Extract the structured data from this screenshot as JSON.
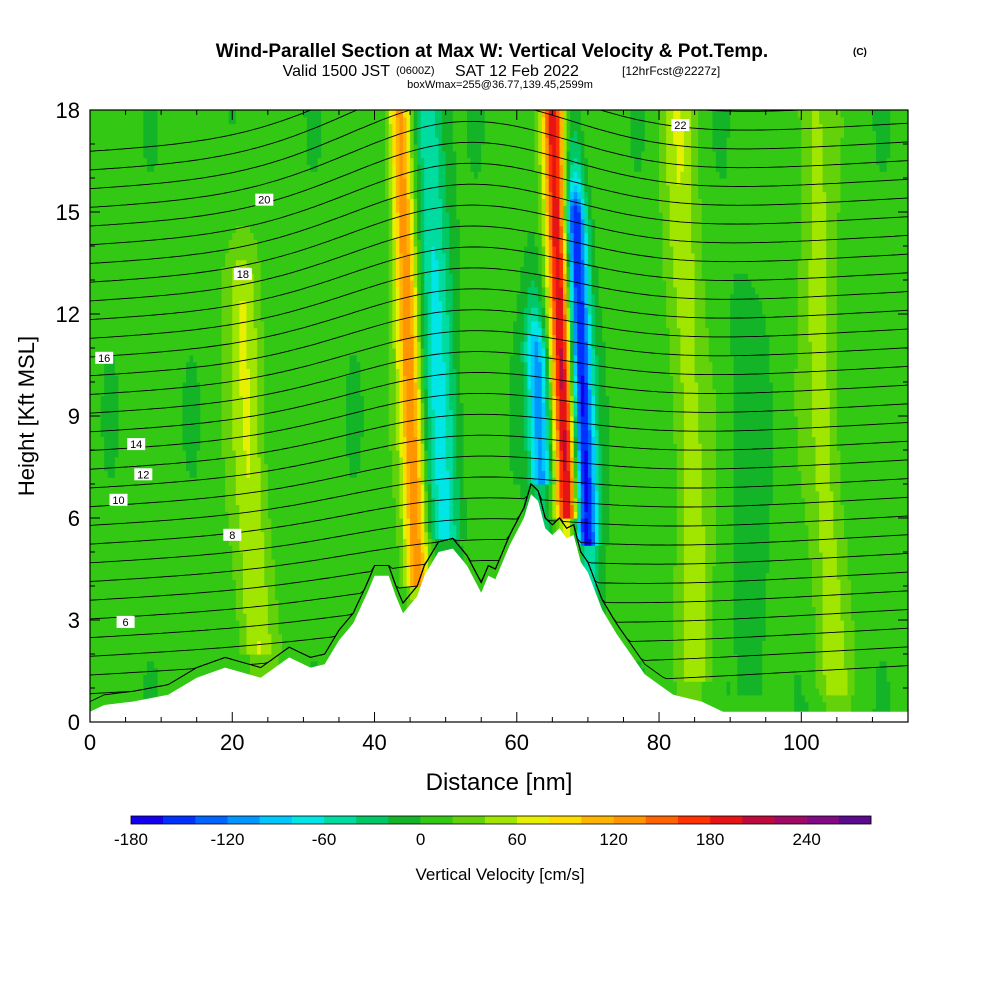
{
  "title": {
    "main": "Wind-Parallel Section at Max W: Vertical Velocity & Pot.Temp.",
    "copyright": "(C)",
    "valid_prefix": "Valid 1500 JST",
    "valid_utc": "(0600Z)",
    "valid_date": "SAT 12 Feb 2022",
    "forecast": "[12hrFcst@2227z]",
    "box": "boxWmax=255@36.77,139.45,2599m"
  },
  "chart_data": {
    "type": "heatmap",
    "xlabel": "Distance [nm]",
    "ylabel": "Height [Kft MSL]",
    "xlim": [
      0,
      115
    ],
    "ylim": [
      0,
      18
    ],
    "x_ticks": [
      "0",
      "20",
      "40",
      "60",
      "80",
      "100"
    ],
    "y_ticks": [
      "0",
      "3",
      "6",
      "9",
      "12",
      "15",
      "18"
    ],
    "colorbar": {
      "label": "Vertical Velocity [cm/s]",
      "min": -180,
      "max": 270,
      "step": 20,
      "tick_values": [
        -180,
        -120,
        -60,
        0,
        60,
        120,
        180,
        240
      ],
      "tick_labels": [
        "-180",
        "-120",
        "-60",
        "0",
        "60",
        "120",
        "180",
        "240"
      ],
      "colors": [
        "#1400f0",
        "#0032ff",
        "#0064ff",
        "#0096ff",
        "#00c8ff",
        "#00e6e6",
        "#00dca0",
        "#00c864",
        "#14b428",
        "#32c814",
        "#64d20a",
        "#a0e600",
        "#e6f000",
        "#ffdc00",
        "#ffb400",
        "#ff9600",
        "#ff6400",
        "#ff3200",
        "#e61414",
        "#be0a3c",
        "#a00a64",
        "#820a82",
        "#5a0a8c"
      ]
    },
    "updrafts": [
      {
        "x": 45,
        "z_top": 18,
        "w": 130
      },
      {
        "x": 66.5,
        "z_top": 18,
        "w": 200
      },
      {
        "x": 22,
        "z_top": 13,
        "w": 50
      },
      {
        "x": 84,
        "z_top": 18,
        "w": 45
      },
      {
        "x": 103,
        "z_top": 18,
        "w": 40
      }
    ],
    "downdrafts": [
      {
        "x": 49,
        "z_top": 18,
        "w": -70
      },
      {
        "x": 63,
        "z_top": 11,
        "w": -120
      },
      {
        "x": 69,
        "z_top": 15,
        "w": -180
      },
      {
        "x": 92,
        "z_top": 12,
        "w": -20
      }
    ],
    "terrain_kft": [
      [
        0,
        0.3
      ],
      [
        2,
        0.5
      ],
      [
        6,
        0.6
      ],
      [
        11,
        0.8
      ],
      [
        15,
        1.3
      ],
      [
        19,
        1.6
      ],
      [
        24,
        1.3
      ],
      [
        28,
        1.9
      ],
      [
        31,
        1.6
      ],
      [
        33,
        1.7
      ],
      [
        35,
        2.4
      ],
      [
        37,
        2.9
      ],
      [
        39,
        3.8
      ],
      [
        40,
        4.3
      ],
      [
        42,
        4.3
      ],
      [
        43,
        3.7
      ],
      [
        44,
        3.2
      ],
      [
        46,
        3.7
      ],
      [
        47,
        4.3
      ],
      [
        49,
        5.0
      ],
      [
        51,
        5.1
      ],
      [
        53,
        4.6
      ],
      [
        55,
        3.8
      ],
      [
        56,
        4.3
      ],
      [
        57,
        4.2
      ],
      [
        59,
        5.2
      ],
      [
        61,
        6.0
      ],
      [
        62,
        6.7
      ],
      [
        63,
        6.5
      ],
      [
        64,
        5.7
      ],
      [
        65,
        5.5
      ],
      [
        66,
        5.7
      ],
      [
        67,
        5.4
      ],
      [
        68,
        5.5
      ],
      [
        69,
        4.7
      ],
      [
        70,
        4.4
      ],
      [
        72,
        3.3
      ],
      [
        74,
        2.6
      ],
      [
        76,
        2.0
      ],
      [
        78,
        1.4
      ],
      [
        80,
        1.1
      ],
      [
        82,
        0.8
      ],
      [
        86,
        0.6
      ],
      [
        89,
        0.3
      ],
      [
        115,
        0.3
      ]
    ],
    "theta_contours": [
      {
        "label": "6",
        "base_kft": 3.6,
        "label_at": 5
      },
      {
        "label": "8",
        "base_kft": 5.9,
        "label_at": 20
      },
      {
        "label": "10",
        "base_kft": 7.2,
        "label_at": 4
      },
      {
        "label": "12",
        "base_kft": 7.9,
        "label_at": 7.5
      },
      {
        "label": "14",
        "base_kft": 8.8,
        "label_at": 6.5
      },
      {
        "label": "16",
        "base_kft": 11.4,
        "label_at": 2
      },
      {
        "label": "18",
        "base_kft": 13.4,
        "label_at": 21.5
      },
      {
        "label": "20",
        "base_kft": 15.4,
        "label_at": 24.5
      },
      {
        "label": "22",
        "base_kft": 17.0,
        "label_at": 83
      }
    ]
  }
}
